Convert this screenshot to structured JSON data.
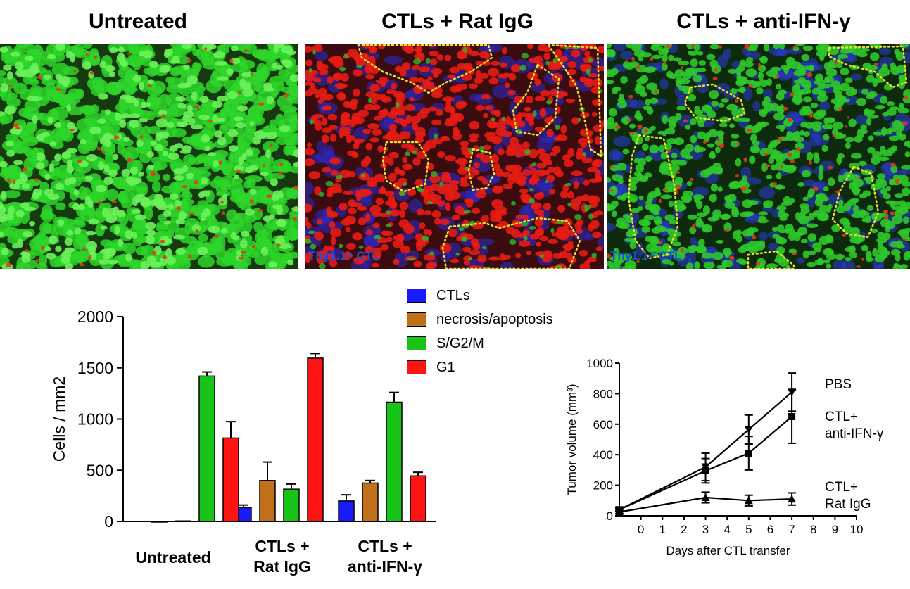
{
  "panels": [
    {
      "title": "Untreated",
      "label": ""
    },
    {
      "title": "CTLs + Rat IgG",
      "label": "Thy1.1+ CTL"
    },
    {
      "title": "CTLs + anti-IFN-γ",
      "label": "Thy1.1+ CTL"
    }
  ],
  "colors": {
    "ctl": "#1a1aff",
    "necrosis": "#c0701b",
    "sg2m": "#19c419",
    "g1": "#ff1414",
    "outline": "#f2e22a",
    "thy_label": "#1c4fe0"
  },
  "legend": [
    {
      "label": "CTLs",
      "color": "#1a1aff"
    },
    {
      "label": "necrosis/apoptosis",
      "color": "#c0701b"
    },
    {
      "label": "S/G2/M",
      "color": "#19c419"
    },
    {
      "label": "G1",
      "color": "#ff1414"
    }
  ],
  "chart_data": [
    {
      "type": "bar",
      "ylabel": "Cells / mm²",
      "ylim": [
        0,
        2000
      ],
      "yticks": [
        0,
        500,
        1000,
        1500,
        2000
      ],
      "categories": [
        "Untreated",
        "CTLs + Rat IgG",
        "CTLs + anti-IFN-γ"
      ],
      "category_lines": [
        [
          "Untreated"
        ],
        [
          "CTLs +",
          "Rat IgG"
        ],
        [
          "CTLs +",
          "anti-IFN-γ"
        ]
      ],
      "series": [
        {
          "name": "CTLs",
          "values": [
            0,
            135,
            200
          ],
          "errors": [
            0,
            25,
            60
          ]
        },
        {
          "name": "necrosis/apoptosis",
          "values": [
            5,
            400,
            375
          ],
          "errors": [
            0,
            180,
            25
          ]
        },
        {
          "name": "S/G2/M",
          "values": [
            1420,
            315,
            1165
          ],
          "errors": [
            40,
            50,
            95
          ]
        },
        {
          "name": "G1",
          "values": [
            815,
            1595,
            445
          ],
          "errors": [
            160,
            45,
            35
          ]
        }
      ]
    },
    {
      "type": "line",
      "xlabel": "Days after CTL transfer",
      "ylabel": "Tumor volume (mm³)",
      "xlim": [
        -1,
        10
      ],
      "ylim": [
        0,
        1000
      ],
      "xticks": [
        0,
        1,
        2,
        3,
        4,
        5,
        6,
        7,
        8,
        9,
        10
      ],
      "yticks": [
        0,
        200,
        400,
        600,
        800,
        1000
      ],
      "series": [
        {
          "name": "PBS",
          "label_lines": [
            "PBS"
          ],
          "marker": "triangle-down",
          "x": [
            -1,
            3,
            5,
            7
          ],
          "y": [
            40,
            320,
            565,
            810
          ],
          "errors": [
            10,
            90,
            95,
            125
          ]
        },
        {
          "name": "CTL+ anti-IFN-γ",
          "label_lines": [
            "CTL+",
            "anti-IFN-γ"
          ],
          "marker": "square",
          "x": [
            -1,
            3,
            5,
            7
          ],
          "y": [
            40,
            295,
            410,
            650
          ],
          "errors": [
            10,
            80,
            110,
            175
          ]
        },
        {
          "name": "CTL+ Rat IgG",
          "label_lines": [
            "CTL+",
            "Rat IgG"
          ],
          "marker": "triangle-up",
          "x": [
            -1,
            3,
            5,
            7
          ],
          "y": [
            25,
            120,
            100,
            110
          ],
          "errors": [
            10,
            35,
            35,
            40
          ]
        }
      ]
    }
  ]
}
